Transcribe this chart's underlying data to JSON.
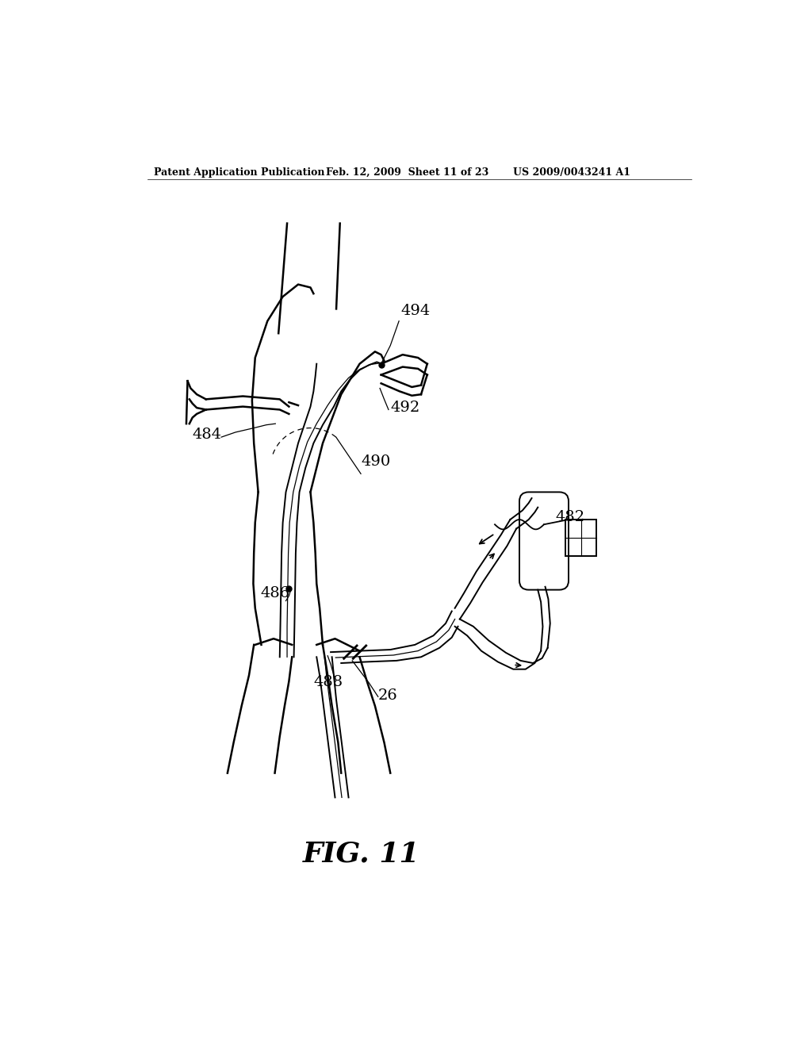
{
  "background_color": "#ffffff",
  "header_left": "Patent Application Publication",
  "header_mid": "Feb. 12, 2009  Sheet 11 of 23",
  "header_right": "US 2009/0043241 A1",
  "fig_label": "FIG. 11",
  "line_color": "#000000",
  "lw_vessel": 1.8,
  "lw_tube": 1.4,
  "lw_dashed": 0.9
}
